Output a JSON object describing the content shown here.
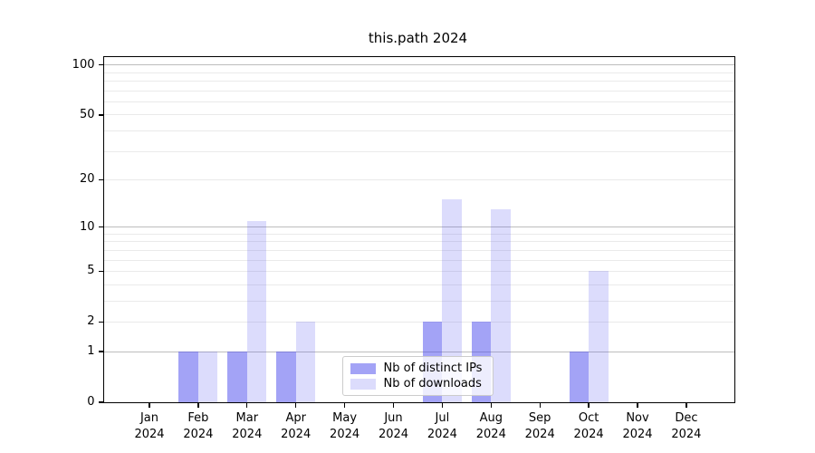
{
  "title": "this.path 2024",
  "colors": {
    "ips_bar": "rgba(78, 78, 238, 0.52)",
    "downloads_bar": "rgba(78, 78, 238, 0.20)",
    "grid_major": "#bdbdbd",
    "grid_minor": "#eaeaea",
    "axis": "#000000"
  },
  "legend": {
    "items": [
      {
        "label": "Nb of distinct IPs",
        "series": "ips"
      },
      {
        "label": "Nb of downloads",
        "series": "downloads"
      }
    ]
  },
  "chart_data": {
    "type": "bar",
    "title": "this.path 2024",
    "categories": [
      "Jan",
      "Feb",
      "Mar",
      "Apr",
      "May",
      "Jun",
      "Jul",
      "Aug",
      "Sep",
      "Oct",
      "Nov",
      "Dec"
    ],
    "category_year": "2024",
    "series": [
      {
        "name": "Nb of distinct IPs",
        "values": [
          0,
          1,
          1,
          1,
          0,
          0,
          2,
          2,
          0,
          1,
          0,
          0
        ]
      },
      {
        "name": "Nb of downloads",
        "values": [
          0,
          1,
          11,
          2,
          0,
          0,
          15,
          13,
          0,
          5,
          0,
          0
        ]
      }
    ],
    "xlabel": "",
    "ylabel": "",
    "yscale": "log1p",
    "ylim": [
      0,
      112
    ],
    "y_tick_values": [
      0,
      1,
      2,
      5,
      10,
      20,
      50,
      100
    ],
    "grid_major_values": [
      1,
      10,
      100
    ],
    "grid_minor_values": [
      2,
      3,
      4,
      5,
      6,
      7,
      8,
      9,
      20,
      30,
      40,
      50,
      60,
      70,
      80,
      90
    ],
    "legend_position": "lower center"
  }
}
